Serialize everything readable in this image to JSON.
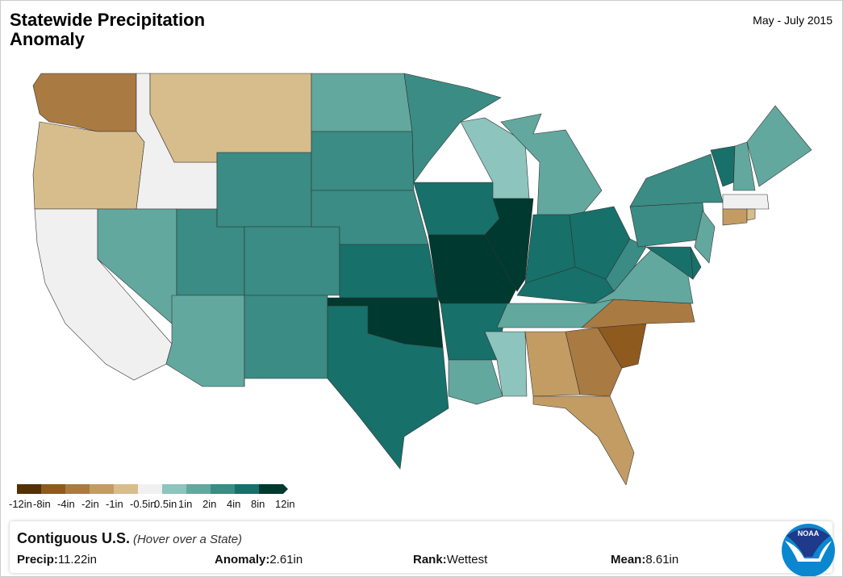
{
  "title": "Statewide Precipitation Anomaly",
  "period": "May - July 2015",
  "legend": {
    "labels": [
      "-12in",
      "-8in",
      "-4in",
      "-2in",
      "-1in",
      "-0.5in",
      "0.5in",
      "1in",
      "2in",
      "4in",
      "8in",
      "12in"
    ],
    "colors": [
      "#543005",
      "#8f5a1e",
      "#a97a42",
      "#c39c64",
      "#d8bd8c",
      "#f0f0f0",
      "#8dc4bd",
      "#62a89e",
      "#3a8c84",
      "#17706a",
      "#00392f"
    ]
  },
  "map": {
    "states": [
      {
        "id": "WA",
        "bin": 2
      },
      {
        "id": "OR",
        "bin": 4
      },
      {
        "id": "CA",
        "bin": 5
      },
      {
        "id": "ID",
        "bin": 5
      },
      {
        "id": "MT",
        "bin": 4
      },
      {
        "id": "NV",
        "bin": 7
      },
      {
        "id": "UT",
        "bin": 8
      },
      {
        "id": "AZ",
        "bin": 7
      },
      {
        "id": "WY",
        "bin": 8
      },
      {
        "id": "CO",
        "bin": 8
      },
      {
        "id": "NM",
        "bin": 8
      },
      {
        "id": "ND",
        "bin": 7
      },
      {
        "id": "SD",
        "bin": 8
      },
      {
        "id": "NE",
        "bin": 8
      },
      {
        "id": "KS",
        "bin": 9
      },
      {
        "id": "OK",
        "bin": 10
      },
      {
        "id": "TX",
        "bin": 9
      },
      {
        "id": "MN",
        "bin": 8
      },
      {
        "id": "IA",
        "bin": 9
      },
      {
        "id": "MO",
        "bin": 10
      },
      {
        "id": "AR",
        "bin": 9
      },
      {
        "id": "LA",
        "bin": 7
      },
      {
        "id": "WI",
        "bin": 6
      },
      {
        "id": "IL",
        "bin": 10
      },
      {
        "id": "MI",
        "bin": 7
      },
      {
        "id": "IN",
        "bin": 9
      },
      {
        "id": "OH",
        "bin": 9
      },
      {
        "id": "KY",
        "bin": 9
      },
      {
        "id": "TN",
        "bin": 7
      },
      {
        "id": "MS",
        "bin": 6
      },
      {
        "id": "AL",
        "bin": 3
      },
      {
        "id": "GA",
        "bin": 2
      },
      {
        "id": "FL",
        "bin": 3
      },
      {
        "id": "SC",
        "bin": 1
      },
      {
        "id": "NC",
        "bin": 2
      },
      {
        "id": "VA",
        "bin": 7
      },
      {
        "id": "WV",
        "bin": 8
      },
      {
        "id": "PA",
        "bin": 8
      },
      {
        "id": "NY",
        "bin": 8
      },
      {
        "id": "VT",
        "bin": 9
      },
      {
        "id": "NH",
        "bin": 7
      },
      {
        "id": "ME",
        "bin": 7
      },
      {
        "id": "MA",
        "bin": 5
      },
      {
        "id": "CT",
        "bin": 3
      },
      {
        "id": "RI",
        "bin": 4
      },
      {
        "id": "NJ",
        "bin": 7
      },
      {
        "id": "DE",
        "bin": 9
      },
      {
        "id": "MD",
        "bin": 9
      }
    ]
  },
  "panel": {
    "region": "Contiguous U.S.",
    "hint": "(Hover over a State)",
    "precip_label": "Precip:",
    "precip": "11.22in",
    "anomaly_label": "Anomaly:",
    "anomaly": "2.61in",
    "rank_label": "Rank:",
    "rank": "Wettest",
    "mean_label": "Mean:",
    "mean": "8.61in"
  },
  "logo": {
    "text": "NOAA",
    "colors": [
      "#1f3a8a",
      "#0a87cf"
    ]
  }
}
